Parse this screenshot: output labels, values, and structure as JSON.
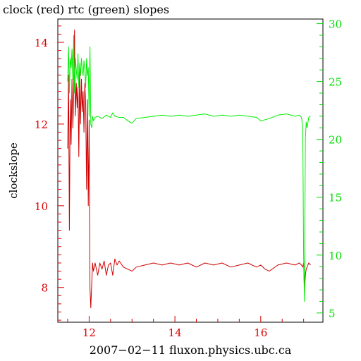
{
  "chart_data": {
    "type": "line",
    "title": "clock (red) rtc (green) slopes",
    "xlabel": "2007−02−11 fluxon.physics.ubc.ca",
    "ylabel_left": "clockslope",
    "ylabel_right": "",
    "xlim": [
      11.27,
      17.45
    ],
    "ylim_left": [
      7.15,
      14.57
    ],
    "ylim_right": [
      4.2,
      30.4
    ],
    "x_ticks": [
      12,
      14,
      16
    ],
    "x_tick_labels": [
      "12",
      "14",
      "16"
    ],
    "y_left_ticks": [
      8,
      10,
      12,
      14
    ],
    "y_left_tick_labels": [
      "8",
      "10",
      "12",
      "14"
    ],
    "y_right_ticks": [
      5,
      10,
      15,
      20,
      25,
      30
    ],
    "y_right_tick_labels": [
      "5",
      "10",
      "15",
      "20",
      "25",
      "30"
    ],
    "grid": false,
    "legend": "none",
    "colors": {
      "clock": "#cc0000",
      "rtc": "#00ee00",
      "left_axis": "#dd0000",
      "right_axis": "#00dd00",
      "frame": "#000000"
    },
    "series": [
      {
        "name": "clock",
        "axis": "left",
        "x": [
          11.5,
          11.52,
          11.54,
          11.56,
          11.58,
          11.6,
          11.62,
          11.64,
          11.66,
          11.68,
          11.7,
          11.72,
          11.74,
          11.76,
          11.78,
          11.8,
          11.82,
          11.84,
          11.86,
          11.88,
          11.9,
          11.92,
          11.94,
          11.96,
          11.98,
          12.0,
          12.02,
          12.04,
          12.06,
          12.08,
          12.1,
          12.14,
          12.2,
          12.25,
          12.3,
          12.35,
          12.4,
          12.45,
          12.5,
          12.55,
          12.6,
          12.65,
          12.7,
          12.8,
          12.9,
          13.0,
          13.1,
          13.3,
          13.5,
          13.7,
          13.9,
          14.1,
          14.3,
          14.5,
          14.7,
          14.9,
          15.1,
          15.3,
          15.5,
          15.7,
          15.9,
          16.0,
          16.1,
          16.2,
          16.4,
          16.6,
          16.8,
          16.9,
          16.95,
          16.98,
          17.0,
          17.02,
          17.04,
          17.06,
          17.08,
          17.12,
          17.16
        ],
        "y": [
          11.4,
          13.2,
          9.4,
          12.6,
          11.5,
          13.1,
          11.9,
          12.7,
          14.3,
          12.2,
          13.0,
          12.4,
          12.9,
          11.2,
          13.3,
          12.0,
          13.1,
          12.3,
          12.8,
          11.8,
          13.0,
          12.5,
          10.4,
          12.6,
          10.0,
          12.1,
          8.0,
          7.5,
          8.1,
          8.6,
          8.4,
          8.6,
          8.3,
          8.6,
          8.45,
          8.65,
          8.3,
          8.55,
          8.6,
          8.3,
          8.7,
          8.55,
          8.65,
          8.5,
          8.45,
          8.4,
          8.5,
          8.55,
          8.6,
          8.55,
          8.6,
          8.55,
          8.6,
          8.5,
          8.6,
          8.55,
          8.6,
          8.5,
          8.55,
          8.6,
          8.5,
          8.55,
          8.45,
          8.4,
          8.55,
          8.6,
          8.55,
          8.6,
          8.55,
          8.5,
          8.6,
          7.9,
          8.3,
          8.45,
          8.5,
          8.6,
          8.55
        ]
      },
      {
        "name": "rtc",
        "axis": "right",
        "x": [
          11.5,
          11.52,
          11.54,
          11.56,
          11.58,
          11.6,
          11.62,
          11.64,
          11.66,
          11.68,
          11.7,
          11.72,
          11.74,
          11.76,
          11.78,
          11.8,
          11.82,
          11.84,
          11.86,
          11.88,
          11.9,
          11.92,
          11.94,
          11.96,
          11.98,
          12.0,
          12.02,
          12.04,
          12.06,
          12.08,
          12.1,
          12.14,
          12.2,
          12.3,
          12.4,
          12.5,
          12.55,
          12.6,
          12.7,
          12.8,
          12.9,
          13.0,
          13.1,
          13.3,
          13.5,
          13.7,
          13.9,
          14.1,
          14.3,
          14.5,
          14.7,
          14.9,
          15.1,
          15.3,
          15.5,
          15.7,
          15.9,
          16.0,
          16.1,
          16.2,
          16.4,
          16.6,
          16.8,
          16.9,
          16.95,
          16.98,
          17.0,
          17.02,
          17.04,
          17.06,
          17.08,
          17.12,
          17.16
        ],
        "y": [
          25.0,
          28.0,
          24.0,
          27.0,
          26.2,
          27.8,
          25.2,
          29.0,
          24.0,
          27.0,
          26.0,
          25.2,
          27.4,
          24.5,
          26.6,
          25.5,
          27.0,
          26.0,
          25.5,
          26.8,
          26.0,
          24.5,
          27.0,
          25.5,
          26.2,
          22.0,
          28.0,
          21.3,
          21.0,
          22.0,
          21.6,
          21.9,
          22.0,
          21.8,
          22.1,
          21.9,
          22.3,
          22.0,
          21.9,
          21.9,
          21.6,
          21.4,
          21.8,
          21.9,
          22.0,
          22.1,
          22.0,
          22.1,
          22.0,
          22.1,
          22.2,
          22.0,
          22.1,
          22.0,
          22.1,
          22.0,
          21.9,
          21.6,
          21.7,
          21.8,
          22.1,
          22.2,
          22.0,
          22.1,
          21.9,
          21.0,
          10.0,
          6.0,
          20.0,
          21.5,
          21.0,
          21.9,
          22.0
        ]
      }
    ]
  }
}
